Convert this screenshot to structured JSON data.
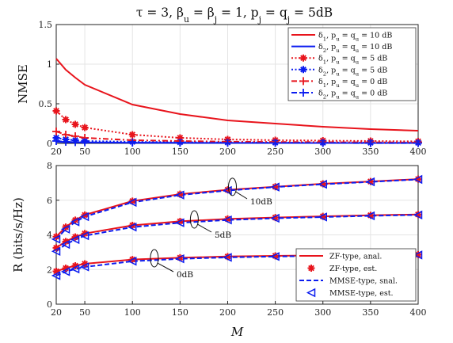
{
  "title": "τ = 3, β_u = β_j = 1, p_j = q_j = 5dB",
  "colors": {
    "red": "#e8141c",
    "blue": "#0b1cf0",
    "grid": "#e4e4e4",
    "axis": "#222222"
  },
  "chart_data": [
    {
      "type": "line",
      "panel": "top",
      "ylabel": "NMSE",
      "xlabel": "",
      "ylim": [
        0,
        1.5
      ],
      "yticks": [
        "0",
        "0.5",
        "1",
        "1.5"
      ],
      "xlim": [
        20,
        400
      ],
      "xticks": [
        "20",
        "50",
        "100",
        "150",
        "200",
        "250",
        "300",
        "350",
        "400"
      ],
      "grid": true,
      "legend_position": "top-right",
      "x": [
        20,
        30,
        40,
        50,
        100,
        150,
        200,
        250,
        300,
        350,
        400
      ],
      "series": [
        {
          "name": "δ1, pu = qu = 10 dB",
          "color": "#e8141c",
          "dash": "solid",
          "marker": "none",
          "values": [
            1.07,
            0.93,
            0.83,
            0.74,
            0.49,
            0.37,
            0.29,
            0.25,
            0.21,
            0.18,
            0.16
          ]
        },
        {
          "name": "δ2, pu = qu = 10 dB",
          "color": "#0b1cf0",
          "dash": "solid",
          "marker": "none",
          "values": [
            0.02,
            0.015,
            0.013,
            0.012,
            0.008,
            0.007,
            0.006,
            0.006,
            0.005,
            0.005,
            0.005
          ]
        },
        {
          "name": "δ1, pu = qu = 5 dB",
          "color": "#e8141c",
          "dash": "dot",
          "marker": "star",
          "values": [
            0.41,
            0.3,
            0.24,
            0.2,
            0.11,
            0.07,
            0.05,
            0.04,
            0.035,
            0.03,
            0.025
          ]
        },
        {
          "name": "δ2, pu = qu = 5 dB",
          "color": "#0b1cf0",
          "dash": "dot",
          "marker": "star",
          "values": [
            0.07,
            0.05,
            0.04,
            0.03,
            0.02,
            0.015,
            0.012,
            0.01,
            0.009,
            0.008,
            0.007
          ]
        },
        {
          "name": "δ1, pu = qu = 0 dB",
          "color": "#e8141c",
          "dash": "dashdot",
          "marker": "plus",
          "values": [
            0.15,
            0.11,
            0.09,
            0.07,
            0.04,
            0.03,
            0.022,
            0.018,
            0.015,
            0.013,
            0.011
          ]
        },
        {
          "name": "δ2, pu = qu = 0 dB",
          "color": "#0b1cf0",
          "dash": "dashdot",
          "marker": "plus",
          "values": [
            0.03,
            0.02,
            0.016,
            0.013,
            0.009,
            0.007,
            0.006,
            0.005,
            0.005,
            0.004,
            0.004
          ]
        }
      ]
    },
    {
      "type": "line",
      "panel": "bottom",
      "ylabel": "R (bits/s/Hz)",
      "xlabel": "M",
      "ylim": [
        0,
        8
      ],
      "yticks": [
        "0",
        "2",
        "4",
        "6",
        "8"
      ],
      "xlim": [
        20,
        400
      ],
      "xticks": [
        "20",
        "50",
        "100",
        "150",
        "200",
        "250",
        "300",
        "350",
        "400"
      ],
      "grid": true,
      "legend_position": "bottom-right",
      "x": [
        20,
        30,
        40,
        50,
        100,
        150,
        200,
        250,
        300,
        350,
        400
      ],
      "legend": [
        "ZF-type, anal.",
        "ZF-type, est.",
        "MMSE-type, snal.",
        "MMSE-type, est."
      ],
      "groups": [
        {
          "label": "10dB",
          "zf_anal": [
            3.9,
            4.45,
            4.85,
            5.15,
            5.95,
            6.35,
            6.6,
            6.78,
            6.95,
            7.08,
            7.22
          ],
          "zf_est": [
            3.9,
            4.45,
            4.85,
            5.15,
            5.95,
            6.35,
            6.6,
            6.78,
            6.95,
            7.08,
            7.22
          ],
          "mmse_anal": [
            3.75,
            4.33,
            4.75,
            5.05,
            5.88,
            6.3,
            6.56,
            6.76,
            6.92,
            7.06,
            7.2
          ],
          "mmse_est": [
            3.75,
            4.33,
            4.75,
            5.05,
            5.88,
            6.3,
            6.56,
            6.76,
            6.92,
            7.06,
            7.2
          ]
        },
        {
          "label": "5dB",
          "zf_anal": [
            3.25,
            3.62,
            3.88,
            4.08,
            4.55,
            4.78,
            4.92,
            5.0,
            5.07,
            5.13,
            5.18
          ],
          "zf_est": [
            3.25,
            3.62,
            3.88,
            4.08,
            4.55,
            4.78,
            4.92,
            5.0,
            5.07,
            5.13,
            5.18
          ],
          "mmse_anal": [
            3.05,
            3.45,
            3.73,
            3.95,
            4.45,
            4.7,
            4.86,
            4.96,
            5.03,
            5.1,
            5.15
          ],
          "mmse_est": [
            3.05,
            3.45,
            3.73,
            3.95,
            4.45,
            4.7,
            4.86,
            4.96,
            5.03,
            5.1,
            5.15
          ]
        },
        {
          "label": "0dB",
          "zf_anal": [
            1.9,
            2.08,
            2.22,
            2.33,
            2.58,
            2.68,
            2.75,
            2.79,
            2.82,
            2.84,
            2.86
          ],
          "zf_est": [
            1.9,
            2.08,
            2.22,
            2.33,
            2.58,
            2.68,
            2.75,
            2.79,
            2.82,
            2.84,
            2.86
          ],
          "mmse_anal": [
            1.65,
            1.88,
            2.03,
            2.15,
            2.48,
            2.62,
            2.7,
            2.75,
            2.79,
            2.82,
            2.84
          ],
          "mmse_est": [
            1.65,
            1.88,
            2.03,
            2.15,
            2.48,
            2.62,
            2.7,
            2.75,
            2.79,
            2.82,
            2.84
          ]
        }
      ]
    }
  ]
}
